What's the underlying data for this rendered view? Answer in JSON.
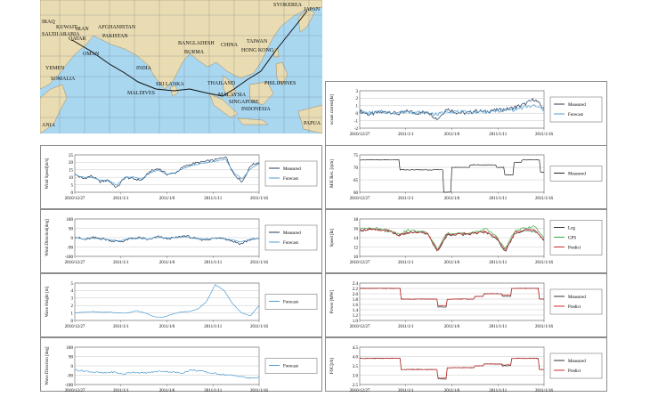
{
  "map": {
    "labels": {
      "syokerea": "SYOKEREA",
      "japan": "JAPAN",
      "iraq": "IRAQ",
      "kuwait": "KUWAIT",
      "saudi_arabia": "SAUDI ARABIA",
      "iran": "IRAN",
      "qatar": "QATAR",
      "afghanistan": "AFGHANISTAN",
      "pakistan": "PAKISTAN",
      "bangladesh": "BANGLADESH",
      "burma": "BURMA",
      "china": "CHINA",
      "taiwan": "TAIWAN",
      "hong_kong": "HONG KONG",
      "oman": "OMAN",
      "yemen": "YEMEN",
      "somalia": "SOMALIA",
      "india": "INDIA",
      "thailand": "THAILAND",
      "philippines": "PHILIPPINES",
      "sri_lanka": "SRI LANKA",
      "maldives": "MALDIVES",
      "malaysia": "MALAYSIA",
      "singapore": "SINGAPORE",
      "indonesia": "INDONESIA",
      "papua": "PAPUA",
      "ania": "ANIA"
    }
  },
  "chart_data": [
    {
      "id": "ocean-current",
      "type": "line",
      "ylabel": "ocean current[kt]",
      "ylim": [
        -2,
        3
      ],
      "yticks": [
        "3",
        "2",
        "1",
        "0",
        "-1",
        "-2"
      ],
      "x_ticks": [
        "2010/12/27",
        "2011/1/1",
        "2011/1/6",
        "2011/1/11",
        "2011/1/16"
      ],
      "legend": [
        "Measured",
        "Forecast"
      ],
      "series": [
        {
          "name": "Measured",
          "color": "#1f3a5a",
          "pattern": "current",
          "values": [
            0.3,
            -0.2,
            0.1,
            0.2,
            -0.1,
            0.3,
            0.0,
            0.2,
            -0.8,
            0.6,
            0.1,
            0.0,
            0.3,
            0.2,
            0.4,
            0.5,
            0.8,
            1.2,
            1.9,
            0.6
          ]
        },
        {
          "name": "Forecast",
          "color": "#4f9bd0",
          "pattern": "current",
          "values": [
            0.2,
            0.0,
            0.2,
            0.1,
            0.1,
            0.2,
            0.1,
            0.1,
            -0.2,
            0.3,
            0.2,
            0.1,
            0.2,
            0.2,
            0.3,
            0.4,
            0.5,
            0.8,
            1.0,
            0.4
          ]
        }
      ]
    },
    {
      "id": "wind-speed",
      "type": "line",
      "ylabel": "Wind Speed[m/s]",
      "ylim": [
        0,
        25
      ],
      "yticks": [
        "25",
        "20",
        "15",
        "10",
        "5",
        "0"
      ],
      "x_ticks": [
        "2010/12/27",
        "2011/1/1",
        "2011/1/6",
        "2011/1/11",
        "2011/1/16"
      ],
      "legend": [
        "Measured",
        "Forecast"
      ],
      "series": [
        {
          "name": "Measured",
          "color": "#1f3a5a",
          "pattern": "noisy",
          "values": [
            12,
            9,
            11,
            7,
            8,
            3,
            10,
            9,
            8,
            14,
            16,
            12,
            13,
            17,
            19,
            20,
            21,
            22,
            24,
            12,
            7,
            18,
            20
          ]
        },
        {
          "name": "Forecast",
          "color": "#4f9bd0",
          "pattern": "smooth",
          "values": [
            12,
            10,
            10,
            8,
            8,
            5,
            10,
            10,
            9,
            13,
            15,
            12,
            13,
            16,
            18,
            19,
            20,
            21,
            22,
            13,
            9,
            16,
            19
          ]
        }
      ]
    },
    {
      "id": "wind-direction",
      "type": "line",
      "ylabel": "Wind Direction[deg]",
      "ylim": [
        -180,
        180
      ],
      "yticks": [
        "180",
        "90",
        "0",
        "-90",
        "-180"
      ],
      "x_ticks": [
        "2010/12/27",
        "2011/1/1",
        "2011/1/6",
        "2011/1/11",
        "2011/1/16"
      ],
      "legend": [
        "Measured",
        "Forecast"
      ],
      "series": [
        {
          "name": "Measured",
          "color": "#1f3a5a",
          "pattern": "noisy",
          "values": [
            10,
            -20,
            0,
            -10,
            -30,
            -40,
            -10,
            0,
            -20,
            10,
            -10,
            0,
            20,
            -10,
            -20,
            -10,
            0,
            -30,
            -60,
            -20,
            -10
          ]
        },
        {
          "name": "Forecast",
          "color": "#4f9bd0",
          "pattern": "smooth",
          "values": [
            5,
            -15,
            -5,
            -10,
            -25,
            -30,
            -10,
            -5,
            -15,
            5,
            -5,
            0,
            10,
            -10,
            -15,
            -5,
            -5,
            -20,
            -40,
            -15,
            -10
          ]
        }
      ]
    },
    {
      "id": "wave-height",
      "type": "line",
      "ylabel": "Wave Height [m]",
      "ylim": [
        0,
        5
      ],
      "yticks": [
        "5",
        "4",
        "3",
        "2",
        "1",
        "0"
      ],
      "x_ticks": [
        "2010/12/27",
        "2011/1/1",
        "2011/1/6",
        "2011/1/11",
        "2011/1/16"
      ],
      "legend": [
        "Forecast"
      ],
      "series": [
        {
          "name": "Forecast",
          "color": "#4f9bd0",
          "pattern": "wave",
          "values": [
            1.0,
            1.1,
            1.2,
            1.1,
            1.1,
            1.0,
            1.0,
            1.3,
            1.0,
            0.5,
            0.4,
            0.8,
            1.1,
            1.2,
            1.5,
            2.5,
            4.8,
            4.0,
            2.2,
            1.0,
            0.6,
            2.0
          ]
        }
      ]
    },
    {
      "id": "wave-direction",
      "type": "line",
      "ylabel": "Wave Direction [deg]",
      "ylim": [
        -180,
        180
      ],
      "yticks": [
        "180",
        "90",
        "0",
        "-90",
        "-180"
      ],
      "x_ticks": [
        "2010/12/27",
        "2011/1/1",
        "2011/1/6",
        "2011/1/11",
        "2011/1/16"
      ],
      "legend": [
        "Forecast"
      ],
      "series": [
        {
          "name": "Forecast",
          "color": "#4f9bd0",
          "pattern": "wavedir",
          "values": [
            -40,
            -50,
            -60,
            -70,
            -60,
            -80,
            -60,
            -70,
            -60,
            -50,
            -60,
            -70,
            -40,
            -50,
            -70,
            -80,
            -90,
            -100,
            -120,
            -110
          ]
        }
      ]
    },
    {
      "id": "ms-rev",
      "type": "line",
      "ylabel": "M/E Rev. [rpm]",
      "ylim": [
        60,
        75
      ],
      "yticks": [
        "75",
        "70",
        "65",
        "60"
      ],
      "x_ticks": [
        "2010/12/27",
        "2011/1/1",
        "2011/1/6",
        "2011/1/11",
        "2011/1/16"
      ],
      "legend": [
        "Measured"
      ],
      "series": [
        {
          "name": "Measured",
          "color": "#222222",
          "pattern": "step",
          "values": [
            73,
            73,
            73,
            73,
            73,
            69,
            69,
            69,
            69,
            69,
            60,
            70,
            70,
            71,
            71,
            71,
            70,
            67,
            72,
            73,
            73,
            68
          ]
        }
      ]
    },
    {
      "id": "speed",
      "type": "line",
      "ylabel": "Speed [kt]",
      "ylim": [
        10,
        18
      ],
      "yticks": [
        "18",
        "16",
        "14",
        "12",
        "10"
      ],
      "x_ticks": [
        "2010/12/27",
        "2011/1/1",
        "2011/1/6",
        "2011/1/11",
        "2011/1/16"
      ],
      "legend": [
        "Log",
        "GPS",
        "Predict"
      ],
      "series": [
        {
          "name": "Log",
          "color": "#333333",
          "pattern": "noisy",
          "values": [
            15.5,
            15.8,
            15.6,
            15.4,
            14.5,
            15.0,
            15.2,
            14.8,
            11,
            14.5,
            14.8,
            14.6,
            15.0,
            15.2,
            14.0,
            11,
            15.0,
            15.4,
            15.5,
            13.5
          ]
        },
        {
          "name": "GPS",
          "color": "#3aa845",
          "pattern": "noisy",
          "values": [
            15.8,
            16.2,
            15.9,
            15.6,
            14.8,
            15.6,
            15.4,
            15.0,
            11.5,
            14.9,
            15.0,
            14.9,
            15.2,
            15.8,
            14.5,
            11.5,
            15.5,
            16.0,
            16.5,
            13.8
          ]
        },
        {
          "name": "Predict",
          "color": "#cc2a2a",
          "pattern": "noisy",
          "values": [
            15.6,
            15.9,
            15.7,
            15.5,
            14.6,
            15.1,
            15.2,
            14.9,
            11.2,
            14.7,
            14.9,
            14.7,
            15.1,
            15.4,
            14.2,
            11.2,
            15.2,
            15.6,
            15.8,
            13.6
          ]
        }
      ]
    },
    {
      "id": "power",
      "type": "line",
      "ylabel": "Power [MW]",
      "ylim": [
        1.0,
        2.4
      ],
      "yticks": [
        "2.4",
        "2.2",
        "2.0",
        "1.8",
        "1.6",
        "1.4",
        "1.2",
        "1.0"
      ],
      "x_ticks": [
        "2010/12/27",
        "2011/1/1",
        "2011/1/6",
        "2011/1/11",
        "2011/1/16"
      ],
      "legend": [
        "Measured",
        "Predict"
      ],
      "series": [
        {
          "name": "Measured",
          "color": "#333333",
          "pattern": "step",
          "values": [
            2.2,
            2.2,
            2.2,
            2.2,
            2.2,
            1.8,
            1.8,
            1.8,
            1.8,
            1.5,
            1.8,
            1.8,
            1.8,
            1.9,
            2.0,
            2.0,
            1.9,
            2.2,
            2.2,
            2.2,
            1.8
          ]
        },
        {
          "name": "Predict",
          "color": "#cc2a2a",
          "pattern": "step",
          "values": [
            2.2,
            2.2,
            2.2,
            2.2,
            2.2,
            1.8,
            1.8,
            1.8,
            1.8,
            1.55,
            1.8,
            1.8,
            1.8,
            1.9,
            2.0,
            2.0,
            1.95,
            2.2,
            2.2,
            2.2,
            1.8
          ]
        }
      ]
    },
    {
      "id": "foc",
      "type": "line",
      "ylabel": "FOC[t/h]",
      "ylim": [
        2.5,
        4.5
      ],
      "yticks": [
        "4.5",
        "4.0",
        "3.5",
        "3.0",
        "2.5"
      ],
      "x_ticks": [
        "2010/12/27",
        "2011/1/1",
        "2011/1/6",
        "2011/1/11",
        "2011/1/16"
      ],
      "legend": [
        "Measured",
        "Predict"
      ],
      "series": [
        {
          "name": "Measured",
          "color": "#333333",
          "pattern": "step",
          "values": [
            3.9,
            3.9,
            3.9,
            3.9,
            3.9,
            3.3,
            3.3,
            3.3,
            3.3,
            2.8,
            3.4,
            3.4,
            3.4,
            3.5,
            3.6,
            3.6,
            3.5,
            3.9,
            3.9,
            3.9,
            3.3
          ]
        },
        {
          "name": "Predict",
          "color": "#cc2a2a",
          "pattern": "step",
          "values": [
            3.9,
            3.9,
            3.9,
            3.9,
            3.9,
            3.3,
            3.3,
            3.3,
            3.3,
            2.85,
            3.4,
            3.4,
            3.4,
            3.5,
            3.6,
            3.6,
            3.55,
            3.9,
            3.9,
            3.9,
            3.3
          ]
        }
      ]
    }
  ]
}
